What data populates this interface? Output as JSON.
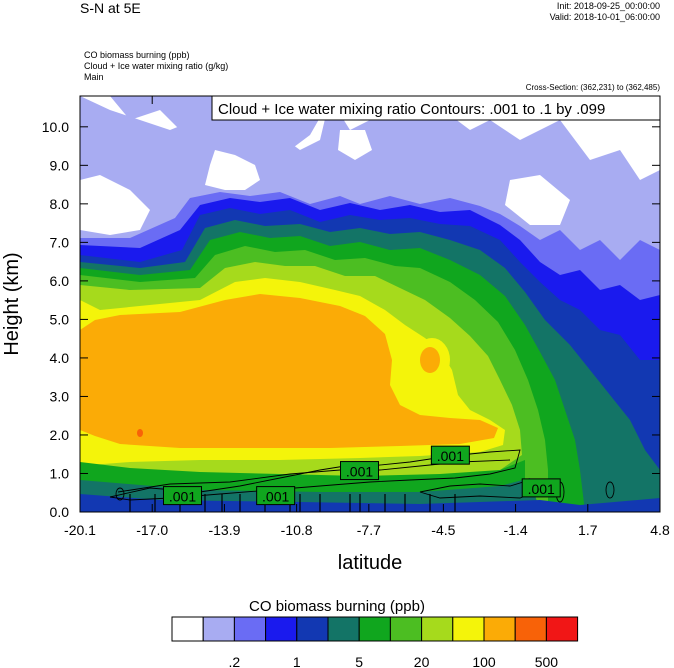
{
  "header": {
    "title": "S-N at 5E",
    "init": "Init: 2018-09-25_00:00:00",
    "valid": "Valid: 2018-10-01_06:00:00",
    "var1": "CO biomass burning   (ppb)",
    "var2": "Cloud + Ice water mixing ratio   (g/kg)",
    "var3": "Main",
    "cross_section": "Cross-Section: (362,231) to (362,485)"
  },
  "colors": {
    "levels": [
      "#ffffff",
      "#a8acf2",
      "#6a6cf4",
      "#1a1aee",
      "#1238b2",
      "#137466",
      "#10a61e",
      "#4cbe22",
      "#a6da1c",
      "#f4f40a",
      "#fbab06",
      "#f86208",
      "#f11616"
    ]
  },
  "chart_data": {
    "type": "heatmap",
    "title": "Cloud + Ice water mixing ratio Contours: .001 to .1 by .099",
    "xlabel": "latitude",
    "ylabel": "Height (km)",
    "x_ticks": [
      "-20.1",
      "-17.0",
      "-13.9",
      "-10.8",
      "-7.7",
      "-4.5",
      "-1.4",
      "1.7",
      "4.8"
    ],
    "y_ticks": [
      "0.0",
      "1.0",
      "2.0",
      "3.0",
      "4.0",
      "5.0",
      "6.0",
      "7.0",
      "8.0",
      "9.0",
      "10.0"
    ],
    "xlim": [
      -20.1,
      4.8
    ],
    "ylim": [
      0.0,
      10.8
    ],
    "contour_labels": [
      {
        "text": ".001",
        "x": -15.7,
        "y": 0.4
      },
      {
        "text": ".001",
        "x": -11.7,
        "y": 0.4
      },
      {
        "text": ".001",
        "x": -8.1,
        "y": 1.05
      },
      {
        "text": ".001",
        "x": -4.2,
        "y": 1.45
      },
      {
        "text": ".001",
        "x": -0.3,
        "y": 0.6
      }
    ],
    "colorbar": {
      "title": "CO biomass burning  (ppb)",
      "tick_labels": [
        ".2",
        "1",
        "5",
        "20",
        "100",
        "500"
      ]
    }
  }
}
